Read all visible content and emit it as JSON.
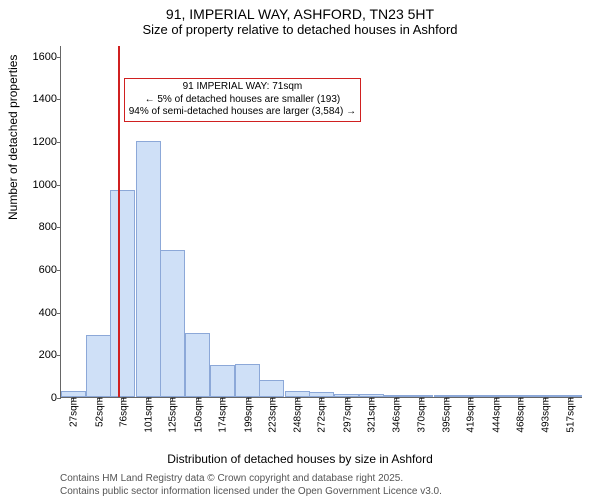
{
  "title": "91, IMPERIAL WAY, ASHFORD, TN23 5HT",
  "subtitle": "Size of property relative to detached houses in Ashford",
  "ylabel": "Number of detached properties",
  "xlabel": "Distribution of detached houses by size in Ashford",
  "footer_line1": "Contains HM Land Registry data © Crown copyright and database right 2025.",
  "footer_line2": "Contains public sector information licensed under the Open Government Licence v3.0.",
  "chart": {
    "type": "histogram",
    "x_min": 15,
    "x_max": 530,
    "y_min": 0,
    "y_max": 1650,
    "ytick_step": 200,
    "ytick_max": 1600,
    "bar_color": "#cfe0f7",
    "bar_border": "#8ca8d8",
    "bar_width_units": 24.5,
    "marker_x": 71,
    "marker_color": "#d02020",
    "callout_border": "#d02020",
    "callout_line1": "91 IMPERIAL WAY: 71sqm",
    "callout_line2": "← 5% of detached houses are smaller (193)",
    "callout_line3": "94% of semi-detached houses are larger (3,584) →",
    "xticks": [
      27,
      52,
      76,
      101,
      125,
      150,
      174,
      199,
      223,
      248,
      272,
      297,
      321,
      346,
      370,
      395,
      419,
      444,
      468,
      493,
      517
    ],
    "xtick_suffix": "sqm",
    "bars": [
      {
        "x": 27,
        "v": 30
      },
      {
        "x": 52,
        "v": 290
      },
      {
        "x": 76,
        "v": 970
      },
      {
        "x": 101,
        "v": 1200
      },
      {
        "x": 125,
        "v": 690
      },
      {
        "x": 150,
        "v": 300
      },
      {
        "x": 174,
        "v": 150
      },
      {
        "x": 199,
        "v": 155
      },
      {
        "x": 223,
        "v": 80
      },
      {
        "x": 248,
        "v": 30
      },
      {
        "x": 272,
        "v": 25
      },
      {
        "x": 297,
        "v": 15
      },
      {
        "x": 321,
        "v": 12
      },
      {
        "x": 346,
        "v": 10
      },
      {
        "x": 370,
        "v": 8
      },
      {
        "x": 395,
        "v": 10
      },
      {
        "x": 419,
        "v": 6
      },
      {
        "x": 444,
        "v": 6
      },
      {
        "x": 468,
        "v": 4
      },
      {
        "x": 493,
        "v": 6
      },
      {
        "x": 517,
        "v": 4
      }
    ]
  }
}
